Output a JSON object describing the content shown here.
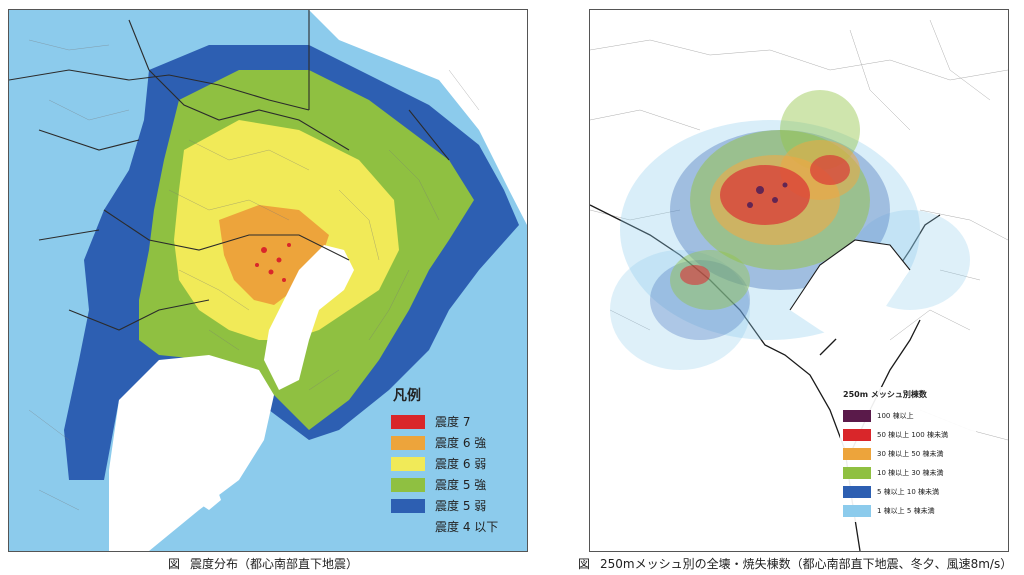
{
  "left_map": {
    "legend": {
      "title": "凡例",
      "items": [
        {
          "label": "震度 7",
          "color": "#d9262a"
        },
        {
          "label": "震度 6 強",
          "color": "#eda43b"
        },
        {
          "label": "震度 6 弱",
          "color": "#f1ea58"
        },
        {
          "label": "震度 5 強",
          "color": "#8fc041"
        },
        {
          "label": "震度 5 弱",
          "color": "#2d5fb2"
        },
        {
          "label": "震度 4 以下",
          "color": "#8ccbec"
        }
      ]
    },
    "caption": {
      "fig": "図",
      "text": "震度分布（都心南部直下地震）"
    }
  },
  "right_map": {
    "legend": {
      "title": "250m メッシュ別棟数",
      "items": [
        {
          "label": "100 棟以上",
          "color": "#5a1a4a"
        },
        {
          "label": "50 棟以上 100 棟未満",
          "color": "#d9262a"
        },
        {
          "label": "30 棟以上 50 棟未満",
          "color": "#eda43b"
        },
        {
          "label": "10 棟以上 30 棟未満",
          "color": "#8fc041"
        },
        {
          "label": "5 棟以上 10 棟未満",
          "color": "#2d5fb2"
        },
        {
          "label": "1 棟以上 5 棟未満",
          "color": "#8ccbec"
        }
      ]
    },
    "caption": {
      "fig": "図",
      "text": "250mメッシュ別の全壊・焼失棟数（都心南部直下地震、冬夕、風速8m/s）"
    }
  }
}
